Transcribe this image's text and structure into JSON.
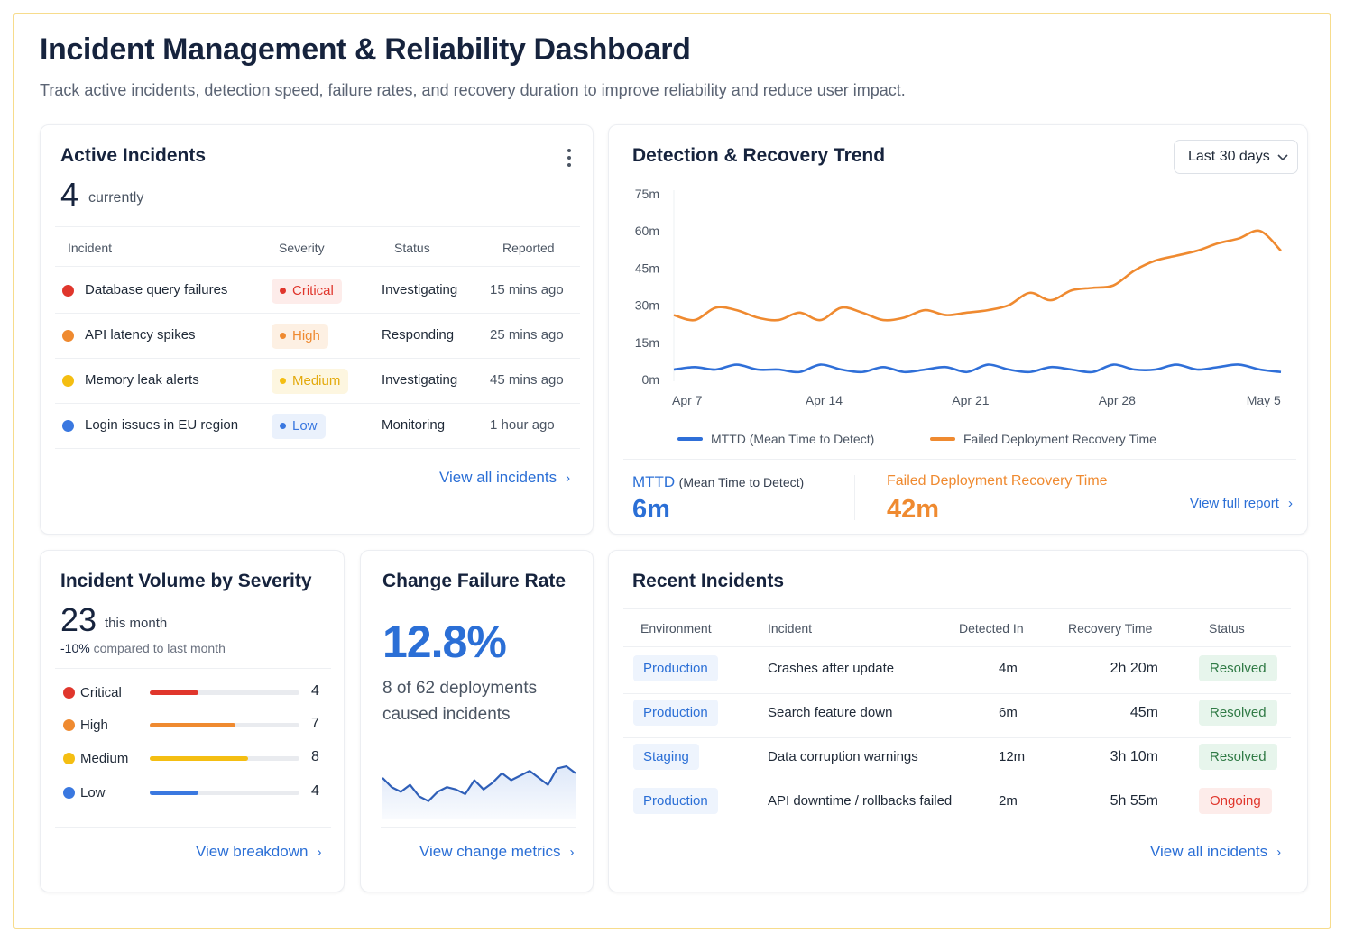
{
  "header": {
    "title": "Incident Management & Reliability Dashboard",
    "subtitle": "Track active incidents, detection speed, failure rates, and recovery duration to improve reliability and reduce user impact."
  },
  "active_incidents": {
    "title": "Active Incidents",
    "count": "4",
    "count_label": "currently",
    "columns": [
      "Incident",
      "Severity",
      "Status",
      "Reported"
    ],
    "rows": [
      {
        "name": "Database query failures",
        "severity": "Critical",
        "status": "Investigating",
        "reported": "15 mins ago",
        "color": "#e0362c",
        "bg": "#fdecea"
      },
      {
        "name": "API latency spikes",
        "severity": "High",
        "status": "Responding",
        "reported": "25 mins ago",
        "color": "#ef8a30",
        "bg": "#fdf0e3"
      },
      {
        "name": "Memory leak alerts",
        "severity": "Medium",
        "status": "Investigating",
        "reported": "45 mins ago",
        "color": "#f4be12",
        "bg": "#fdf6e0"
      },
      {
        "name": "Login issues in EU region",
        "severity": "Low",
        "status": "Monitoring",
        "reported": "1 hour ago",
        "color": "#3a78e0",
        "bg": "#eaf1fc"
      }
    ],
    "link": "View all incidents",
    "menu_icon": "kebab-menu-icon"
  },
  "trend": {
    "title": "Detection & Recovery Trend",
    "range_select": "Last 30 days",
    "mttd_label": "MTTD",
    "mttd_sub": "(Mean Time to Detect)",
    "mttd_value": "6m",
    "fdrt_label": "Failed Deployment Recovery Time",
    "fdrt_value": "42m",
    "link": "View full report"
  },
  "chart_data": [
    {
      "type": "line",
      "title": "Detection & Recovery Trend",
      "xlabel": "",
      "ylabel": "",
      "ylim": [
        0,
        75
      ],
      "y_ticks": [
        "0m",
        "15m",
        "30m",
        "45m",
        "60m",
        "75m"
      ],
      "x_ticks": [
        "Apr 7",
        "Apr 14",
        "Apr 21",
        "Apr 28",
        "May 5"
      ],
      "x": [
        "Apr 7",
        "Apr 8",
        "Apr 9",
        "Apr 10",
        "Apr 11",
        "Apr 12",
        "Apr 13",
        "Apr 14",
        "Apr 15",
        "Apr 16",
        "Apr 17",
        "Apr 18",
        "Apr 19",
        "Apr 20",
        "Apr 21",
        "Apr 22",
        "Apr 23",
        "Apr 24",
        "Apr 25",
        "Apr 26",
        "Apr 27",
        "Apr 28",
        "Apr 29",
        "Apr 30",
        "May 1",
        "May 2",
        "May 3",
        "May 4",
        "May 5",
        "May 6"
      ],
      "series": [
        {
          "name": "MTTD (Mean Time to Detect)",
          "color": "#2f6fd8",
          "values": [
            4,
            5,
            4,
            6,
            4,
            4,
            3,
            6,
            4,
            3,
            5,
            3,
            4,
            5,
            3,
            6,
            4,
            3,
            5,
            4,
            3,
            6,
            4,
            4,
            6,
            4,
            5,
            6,
            4,
            3
          ]
        },
        {
          "name": "Failed Deployment Recovery Time",
          "color": "#ef8a30",
          "values": [
            26,
            24,
            29,
            28,
            25,
            24,
            27,
            24,
            29,
            27,
            24,
            25,
            28,
            26,
            27,
            28,
            30,
            35,
            32,
            36,
            37,
            38,
            44,
            48,
            50,
            52,
            55,
            57,
            60,
            52
          ]
        }
      ],
      "legend": "bottom",
      "grid": false
    },
    {
      "type": "area",
      "title": "",
      "xlabel": "",
      "ylabel": "",
      "values": [
        13.8,
        13.0,
        12.6,
        13.2,
        12.2,
        11.8,
        12.6,
        13.0,
        12.8,
        12.4,
        13.6,
        12.8,
        13.4,
        14.2,
        13.6,
        14.0,
        14.4,
        13.8,
        13.2,
        14.6,
        14.8,
        14.2
      ]
    }
  ],
  "volume": {
    "title": "Incident Volume by Severity",
    "total": "23",
    "total_label": "this month",
    "change": "-10%",
    "change_label": "compared to last month",
    "items": [
      {
        "label": "Critical",
        "count": "4",
        "value": 4,
        "color": "#e0362c"
      },
      {
        "label": "High",
        "count": "7",
        "value": 7,
        "color": "#ef8a30"
      },
      {
        "label": "Medium",
        "count": "8",
        "value": 8,
        "color": "#f4be12"
      },
      {
        "label": "Low",
        "count": "4",
        "value": 4,
        "color": "#3a78e0"
      }
    ],
    "max": 12.2,
    "link": "View breakdown"
  },
  "cfr": {
    "title": "Change Failure Rate",
    "value": "12.8%",
    "desc_line1": "8 of 62 deployments",
    "desc_line2": "caused incidents",
    "link": "View change metrics"
  },
  "recent": {
    "title": "Recent Incidents",
    "columns": [
      "Environment",
      "Incident",
      "Detected In",
      "Recovery Time",
      "Status"
    ],
    "rows": [
      {
        "env": "Production",
        "incident": "Crashes after update",
        "detected": "4m",
        "recovery": "2h 20m",
        "status": "Resolved",
        "ok": true
      },
      {
        "env": "Production",
        "incident": "Search feature down",
        "detected": "6m",
        "recovery": "45m",
        "status": "Resolved",
        "ok": true
      },
      {
        "env": "Staging",
        "incident": "Data corruption warnings",
        "detected": "12m",
        "recovery": "3h 10m",
        "status": "Resolved",
        "ok": true
      },
      {
        "env": "Production",
        "incident": "API downtime / rollbacks failed",
        "detected": "2m",
        "recovery": "5h 55m",
        "status": "Ongoing",
        "ok": false
      }
    ],
    "link": "View all incidents"
  },
  "icons": {
    "chevron": "chevron-right-icon",
    "select": "chevron-down-icon"
  }
}
